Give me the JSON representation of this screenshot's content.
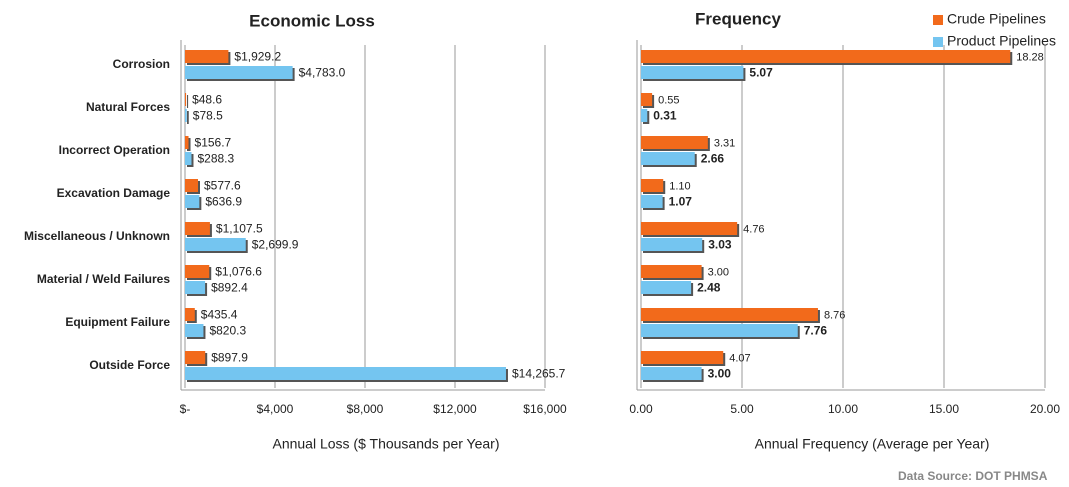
{
  "chart_data": [
    {
      "type": "hbar",
      "title": "Economic Loss",
      "categories": [
        "Corrosion",
        "Natural Forces",
        "Incorrect Operation",
        "Excavation Damage",
        "Miscellaneous / Unknown",
        "Material / Weld Failures",
        "Equipment Failure",
        "Outside Force"
      ],
      "series": [
        {
          "color": "#f26a1b",
          "values": [
            1929.2,
            48.6,
            156.7,
            577.6,
            1107.5,
            1076.6,
            435.4,
            897.9
          ],
          "value_labels": [
            "$1,929.2",
            "$48.6",
            "$156.7",
            "$577.6",
            "$1,107.5",
            "$1,076.6",
            "$435.4",
            "$897.9"
          ]
        },
        {
          "color": "#74c5f0",
          "values": [
            4783.0,
            78.5,
            288.3,
            636.9,
            2699.9,
            892.4,
            820.3,
            14265.7
          ],
          "value_labels": [
            "$4,783.0",
            "$78.5",
            "$288.3",
            "$636.9",
            "$2,699.9",
            "$892.4",
            "$820.3",
            "$14,265.7"
          ]
        }
      ],
      "xlim": [
        0,
        16000
      ],
      "xticks": [
        {
          "value": 0,
          "label": "$-"
        },
        {
          "value": 4000,
          "label": "$4,000"
        },
        {
          "value": 8000,
          "label": "$8,000"
        },
        {
          "value": 12000,
          "label": "$12,000"
        },
        {
          "value": 16000,
          "label": "$16,000"
        }
      ],
      "xlabel": "Annual Loss ($ Thousands per Year)",
      "grid": true
    },
    {
      "type": "hbar",
      "title": "Frequency",
      "series": [
        {
          "name": "Crude Pipelines",
          "color": "#f26a1b",
          "values": [
            18.28,
            0.55,
            3.31,
            1.1,
            4.76,
            3.0,
            8.76,
            4.07
          ],
          "value_labels": [
            "18.28",
            "0.55",
            "3.31",
            "1.10",
            "4.76",
            "3.00",
            "8.76",
            "4.07"
          ]
        },
        {
          "name": "Product Pipelines",
          "color": "#74c5f0",
          "values": [
            5.07,
            0.31,
            2.66,
            1.07,
            3.03,
            2.48,
            7.76,
            3.0
          ],
          "value_labels": [
            "5.07",
            "0.31",
            "2.66",
            "1.07",
            "3.03",
            "2.48",
            "7.76",
            "3.00"
          ]
        }
      ],
      "xlim": [
        0,
        20
      ],
      "xticks": [
        {
          "value": 0,
          "label": "0.00"
        },
        {
          "value": 5,
          "label": "5.00"
        },
        {
          "value": 10,
          "label": "10.00"
        },
        {
          "value": 15,
          "label": "15.00"
        },
        {
          "value": 20,
          "label": "20.00"
        }
      ],
      "xlabel": "Annual Frequency (Average per Year)",
      "grid": true,
      "legend": "top-right"
    }
  ],
  "source": "Data Source: DOT PHMSA"
}
